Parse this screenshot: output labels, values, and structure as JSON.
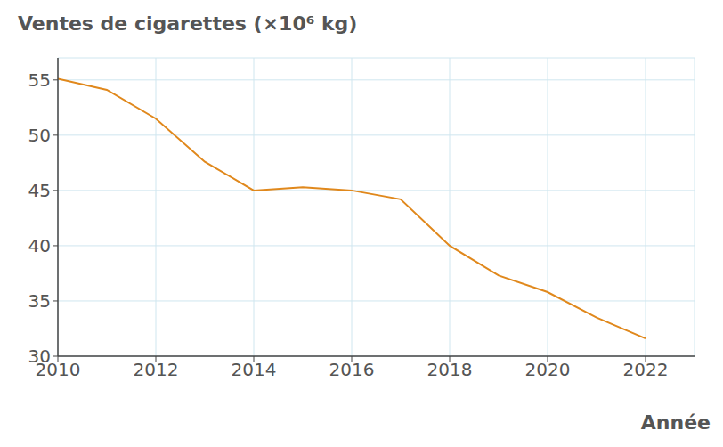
{
  "chart_data": {
    "type": "line",
    "y_label": "Ventes de cigarettes (×10⁶ kg)",
    "x_label": "Année",
    "x": [
      2010,
      2011,
      2012,
      2013,
      2014,
      2015,
      2016,
      2017,
      2018,
      2019,
      2020,
      2021,
      2022
    ],
    "series": [
      {
        "name": "Ventes de cigarettes",
        "color": "#e0881c",
        "values": [
          55.1,
          54.1,
          51.5,
          47.6,
          45.0,
          45.3,
          45.0,
          44.2,
          40.0,
          37.3,
          35.8,
          33.5,
          31.6
        ]
      }
    ],
    "xlim": [
      2010,
      2023
    ],
    "xticks": [
      2010,
      2012,
      2014,
      2016,
      2018,
      2020,
      2022
    ],
    "ylim": [
      30,
      57
    ],
    "yticks": [
      30,
      35,
      40,
      45,
      50,
      55
    ],
    "grid": true,
    "marker": "none",
    "line_style": "solid"
  }
}
